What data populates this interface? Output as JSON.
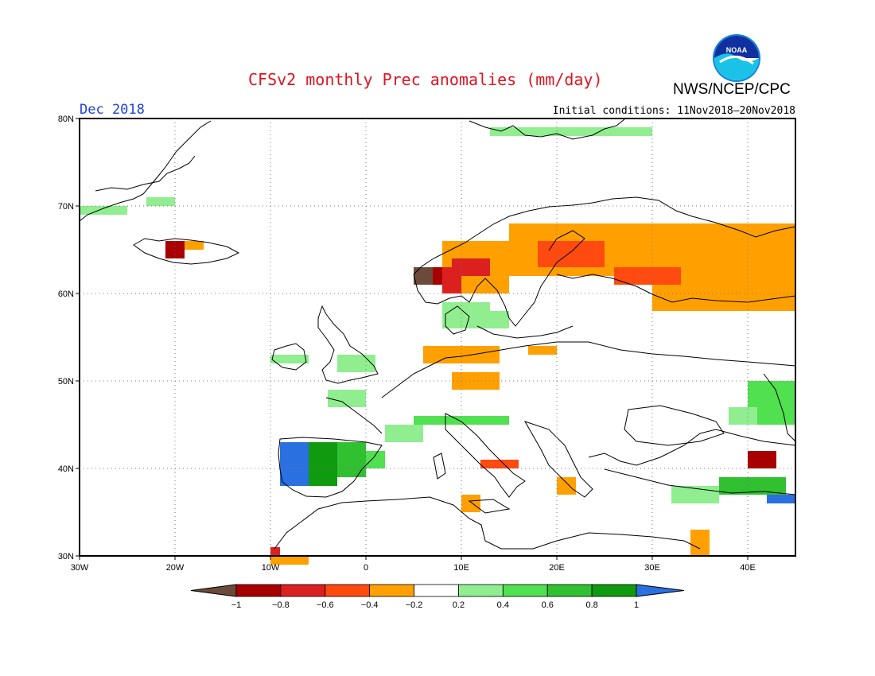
{
  "header": {
    "title": "CFSv2 monthly Prec anomalies (mm/day)",
    "agency": "NWS/NCEP/CPC",
    "period": "Dec 2018",
    "initial_conditions": "Initial conditions: 11Nov2018–20Nov2018",
    "logo_text": "NOAA"
  },
  "map": {
    "lon_ticks": [
      "30W",
      "20W",
      "10W",
      "0",
      "10E",
      "20E",
      "30E",
      "40E"
    ],
    "lat_ticks": [
      "80N",
      "70N",
      "60N",
      "50N",
      "40N",
      "30N"
    ],
    "grid": "dotted"
  },
  "colorbar": {
    "labels": [
      "−1",
      "−0.8",
      "−0.6",
      "−0.4",
      "−0.2",
      "0.2",
      "0.4",
      "0.6",
      "0.8",
      "1"
    ],
    "colors": [
      "#6b4a3a",
      "#a80000",
      "#dc2020",
      "#ff4a10",
      "#ffa000",
      "#ffffff",
      "#90ee90",
      "#50e050",
      "#30c030",
      "#109a10",
      "#2a70e0"
    ]
  },
  "colors": {
    "title": "#e0141e",
    "period": "#1e40e0",
    "ocean_land": "#ffffff",
    "coast": "#000000"
  }
}
